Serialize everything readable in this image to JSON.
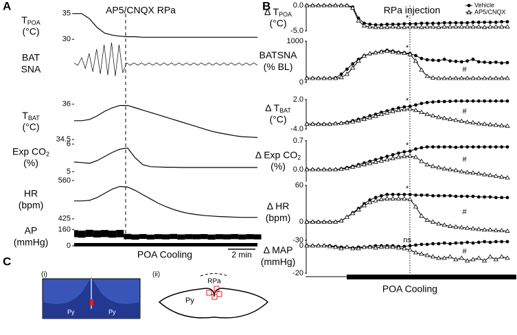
{
  "figure": {
    "panel_labels": [
      "A",
      "B",
      "C"
    ],
    "a_title": "AP5/CNQX RPa",
    "b_title": "RPa injection",
    "a_cooling_label": "POA Cooling",
    "scale_bar": "2 min",
    "b_cooling_label": "POA Cooling",
    "c_labels": [
      "(i)",
      "(ii)"
    ],
    "c_text": [
      "Py",
      "Py",
      "Py",
      "RPa"
    ]
  },
  "chart_data": [
    {
      "type": "line",
      "ylabel": [
        {
          "text": "T",
          "sub": "POA"
        },
        "(°C)"
      ],
      "ylim": [
        29.5,
        35.5
      ],
      "yticks": [
        35,
        30
      ],
      "values": [
        35,
        35,
        34,
        32.3,
        31.2,
        30.8,
        30.6,
        30.5,
        30.5,
        30.4,
        30.4,
        30.4,
        30.4,
        30.4,
        30.4,
        30.4,
        30.4,
        30.4,
        30.4,
        30.4,
        30.4,
        30.4,
        30.4,
        30.4,
        30.4
      ]
    },
    {
      "type": "line",
      "ylabel": [
        "BAT",
        "SNA"
      ],
      "ylim": [
        -1,
        1
      ],
      "yticks": [],
      "values": [
        0.05,
        -0.05,
        0.3,
        -0.2,
        0.5,
        -0.35,
        0.7,
        -0.45,
        0.9,
        -0.5,
        1,
        -0.55,
        0.9,
        -0.4,
        0.06,
        -0.05,
        0.06,
        -0.05,
        0.06,
        -0.05,
        0.06,
        -0.05,
        0.06,
        -0.05,
        0.06,
        -0.05,
        0.06,
        -0.05,
        0.06,
        -0.05,
        0.06,
        -0.05,
        0.06,
        -0.05,
        0.06,
        -0.05,
        0.06,
        -0.05,
        0.06,
        -0.05,
        0.06,
        -0.05,
        0.06,
        -0.05,
        0.06,
        -0.05,
        0.06,
        -0.05,
        0.06,
        -0.05
      ]
    },
    {
      "type": "line",
      "ylabel": [
        {
          "text": "T",
          "sub": "BAT"
        },
        "(°C)"
      ],
      "ylim": [
        34.3,
        36.2
      ],
      "yticks": [
        36,
        34.5
      ],
      "values": [
        35.3,
        35.3,
        35.35,
        35.5,
        35.7,
        35.85,
        35.95,
        35.95,
        35.85,
        35.75,
        35.65,
        35.55,
        35.45,
        35.35,
        35.25,
        35.15,
        35.05,
        34.95,
        34.85,
        34.78,
        34.72,
        34.66,
        34.62,
        34.6,
        34.58
      ]
    },
    {
      "type": "line",
      "ylabel": [
        {
          "text": "Exp CO",
          "sub": "2"
        },
        "(%)"
      ],
      "ylim": [
        4.9,
        6.1
      ],
      "yticks": [
        6,
        5
      ],
      "values": [
        5.35,
        5.33,
        5.3,
        5.4,
        5.55,
        5.7,
        5.82,
        5.86,
        5.5,
        5.25,
        5.18,
        5.17,
        5.16,
        5.16,
        5.15,
        5.15,
        5.15,
        5.15,
        5.15,
        5.15,
        5.15,
        5.15,
        5.15,
        5.15,
        5.15
      ]
    },
    {
      "type": "line",
      "ylabel": [
        "HR",
        "(bpm)"
      ],
      "ylim": [
        410,
        572
      ],
      "yticks": [
        560,
        425
      ],
      "values": [
        488,
        488,
        490,
        500,
        515,
        530,
        539,
        537,
        525,
        510,
        495,
        480,
        468,
        458,
        450,
        444,
        440,
        437,
        435,
        433,
        432,
        431,
        430,
        430,
        430
      ]
    },
    {
      "type": "band",
      "ylabel": [
        "AP",
        "(mmHg)"
      ],
      "ylim": [
        0,
        170
      ],
      "yticks": [
        160,
        0
      ],
      "high": [
        155,
        150,
        158,
        152,
        156,
        150,
        157,
        118,
        112,
        116,
        110,
        115,
        113,
        117,
        112,
        115,
        114,
        116,
        111,
        115,
        113,
        116,
        112,
        115,
        113
      ],
      "low": [
        85,
        80,
        88,
        82,
        86,
        80,
        84,
        65,
        60,
        68,
        62,
        66,
        63,
        67,
        61,
        65,
        64,
        66,
        60,
        65,
        63,
        66,
        62,
        65,
        63
      ]
    },
    {
      "type": "line",
      "ylabel": [
        {
          "text": "Δ T",
          "sub": "POA"
        },
        "(°C)"
      ],
      "ylim": [
        -5,
        0
      ],
      "yticks": [
        {
          "value": 0,
          "label": "0.0"
        },
        {
          "value": -5,
          "label": "-5.0"
        }
      ],
      "annotations": [
        "*"
      ],
      "legend": "upper right",
      "series": [
        {
          "name": "Vehicle",
          "color": "#000000",
          "marker": "circle",
          "values": [
            0,
            0,
            0,
            0,
            0,
            0,
            0,
            0,
            -0.3,
            -2.5,
            -3.5,
            -3.7,
            -3.8,
            -3.8,
            -3.7,
            -3.7,
            -3.7,
            -3.6,
            -3.6,
            -3.6,
            -3.5,
            -3.5,
            -3.5,
            -3.5,
            -3.4,
            -3.4,
            -3.4,
            -3.4,
            -3.4,
            -3.3,
            -3.3,
            -3.3,
            -3.3,
            -3.3,
            -3.2,
            -3.2
          ]
        },
        {
          "name": "AP5/CNQX",
          "color": "#000000",
          "marker": "triangle",
          "values": [
            0,
            0,
            0,
            0,
            0,
            0,
            0,
            0,
            -0.5,
            -3,
            -4,
            -4.2,
            -4.3,
            -4.3,
            -4.3,
            -4.2,
            -4.3,
            -4.3,
            -4.2,
            -4.2,
            -4.3,
            -4.2,
            -4.2,
            -4.3,
            -4.2,
            -4.2,
            -4.2,
            -4.2,
            -4.2,
            -4.2,
            -4.2,
            -4.3,
            -4.2,
            -4.2,
            -4.2,
            -4.2
          ]
        }
      ]
    },
    {
      "type": "line",
      "ylabel": [
        "BATSNA",
        "(% BL)"
      ],
      "ylim": [
        0,
        1000
      ],
      "yticks": [
        1000,
        0
      ],
      "annotations": [
        "*",
        "#"
      ],
      "series": [
        {
          "color": "#000000",
          "marker": "circle",
          "values": [
            100,
            100,
            100,
            100,
            100,
            110,
            200,
            320,
            450,
            560,
            650,
            690,
            720,
            750,
            780,
            760,
            730,
            720,
            700,
            650,
            580,
            550,
            540,
            530,
            560,
            520,
            510,
            500,
            520,
            560,
            500,
            490,
            480,
            490,
            470,
            480
          ]
        },
        {
          "color": "#000000",
          "marker": "triangle",
          "values": [
            100,
            100,
            100,
            100,
            100,
            100,
            120,
            200,
            350,
            520,
            640,
            700,
            720,
            740,
            760,
            740,
            720,
            710,
            680,
            520,
            300,
            150,
            110,
            100,
            100,
            100,
            100,
            100,
            100,
            100,
            100,
            100,
            100,
            100,
            100,
            100
          ]
        }
      ]
    },
    {
      "type": "line",
      "ylabel": [
        {
          "text": "Δ T",
          "sub": "BAT"
        },
        "(°C)"
      ],
      "ylim": [
        -4,
        2
      ],
      "yticks": [
        {
          "value": 2,
          "label": "2.0"
        },
        {
          "value": -4,
          "label": "-4.0"
        }
      ],
      "annotations": [
        "*",
        "#"
      ],
      "series": [
        {
          "color": "#000000",
          "marker": "circle",
          "values": [
            -3,
            -3,
            -3,
            -3,
            -3,
            -2.9,
            -2.8,
            -2.6,
            -2.3,
            -2,
            -1.7,
            -1.3,
            -1,
            -0.6,
            -0.3,
            0,
            0.3,
            0.5,
            0.6,
            0.9,
            1.2,
            1.4,
            1.5,
            1.6,
            1.6,
            1.65,
            1.7,
            1.7,
            1.7,
            1.7,
            1.7,
            1.7,
            1.7,
            1.7,
            1.7,
            1.7
          ]
        },
        {
          "color": "#000000",
          "marker": "triangle",
          "values": [
            -3,
            -3,
            -3,
            -3,
            -3,
            -2.9,
            -2.8,
            -2.7,
            -2.5,
            -2.3,
            -2,
            -1.7,
            -1.4,
            -1,
            -0.7,
            -0.4,
            -0.2,
            0,
            0.1,
            -0.2,
            -0.6,
            -1,
            -1.3,
            -1.6,
            -1.8,
            -2,
            -2.2,
            -2.4,
            -2.6,
            -2.7,
            -2.9,
            -3,
            -3.1,
            -3.2,
            -3.3,
            -3.4
          ]
        }
      ]
    },
    {
      "type": "line",
      "ylabel": [
        {
          "text": "Δ Exp CO",
          "sub": "2"
        },
        "(%)"
      ],
      "ylim": [
        -0.3,
        0.7
      ],
      "yticks": [
        0.7,
        {
          "value": 0,
          "label": "0.0"
        }
      ],
      "annotations": [
        "*",
        "#"
      ],
      "series": [
        {
          "color": "#000000",
          "marker": "circle",
          "values": [
            0,
            0,
            0,
            0,
            0,
            0,
            0.02,
            0.05,
            0.08,
            0.12,
            0.16,
            0.2,
            0.24,
            0.28,
            0.32,
            0.36,
            0.4,
            0.43,
            0.45,
            0.5,
            0.53,
            0.55,
            0.55,
            0.55,
            0.55,
            0.55,
            0.54,
            0.55,
            0.55,
            0.55,
            0.55,
            0.55,
            0.55,
            0.55,
            0.55,
            0.55
          ]
        },
        {
          "color": "#000000",
          "marker": "triangle",
          "values": [
            0,
            0,
            0,
            0,
            0,
            0,
            0.01,
            0.03,
            0.06,
            0.09,
            0.12,
            0.15,
            0.18,
            0.21,
            0.24,
            0.27,
            0.3,
            0.32,
            0.33,
            0.3,
            0.2,
            0.12,
            0.08,
            0.05,
            0.02,
            0,
            -0.02,
            -0.05,
            -0.07,
            -0.08,
            -0.1,
            -0.12,
            -0.14,
            -0.16,
            -0.18,
            -0.2
          ]
        }
      ]
    },
    {
      "type": "line",
      "ylabel": [
        "Δ HR",
        "(bpm)"
      ],
      "ylim": [
        -30,
        60
      ],
      "yticks": [
        60,
        0,
        -30
      ],
      "annotations": [
        "*",
        "#"
      ],
      "series": [
        {
          "color": "#000000",
          "marker": "circle",
          "values": [
            0,
            0,
            0,
            0,
            0,
            0,
            2,
            8,
            15,
            22,
            30,
            36,
            40,
            43,
            45,
            45,
            45,
            45,
            45,
            44,
            44,
            44,
            43,
            43,
            43,
            43,
            42,
            42,
            42,
            42,
            41,
            41,
            41,
            40,
            40,
            40
          ]
        },
        {
          "color": "#000000",
          "marker": "triangle",
          "values": [
            0,
            0,
            0,
            0,
            0,
            0,
            2,
            8,
            14,
            20,
            27,
            32,
            35,
            37,
            38,
            38,
            38,
            38,
            37,
            25,
            10,
            3,
            0,
            -3,
            -5,
            -7,
            -8,
            -9,
            -10,
            -11,
            -12,
            -13,
            -13,
            -14,
            -14,
            -15
          ]
        }
      ]
    },
    {
      "type": "line",
      "ylabel": [
        "Δ MAP",
        "(mmHg)"
      ],
      "ylim": [
        -20,
        4
      ],
      "yticks": [
        0,
        -20
      ],
      "annotations": [
        "ns",
        "#"
      ],
      "series": [
        {
          "color": "#000000",
          "marker": "circle",
          "values": [
            0,
            0,
            0,
            0,
            0,
            -0.5,
            -1,
            -1,
            -1.5,
            -1,
            -1,
            -0.5,
            0,
            0,
            0,
            0,
            -0.5,
            -0.5,
            0,
            0.5,
            1,
            1,
            1.5,
            1.5,
            2,
            1.5,
            2,
            2,
            2.5,
            2,
            2.5,
            3,
            2.5,
            3,
            3,
            3
          ]
        },
        {
          "color": "#000000",
          "marker": "triangle",
          "values": [
            0,
            0,
            0,
            0,
            -0.5,
            -1,
            -2,
            -1,
            -2,
            -2,
            -1,
            -1,
            -1.5,
            -1,
            -1,
            -1,
            -1.5,
            -2,
            -3,
            -5,
            -6,
            -7,
            -8,
            -9,
            -9,
            -8,
            -10,
            -9,
            -11,
            -10,
            -9,
            -11,
            -8,
            -10,
            -8,
            -9
          ]
        }
      ]
    }
  ]
}
